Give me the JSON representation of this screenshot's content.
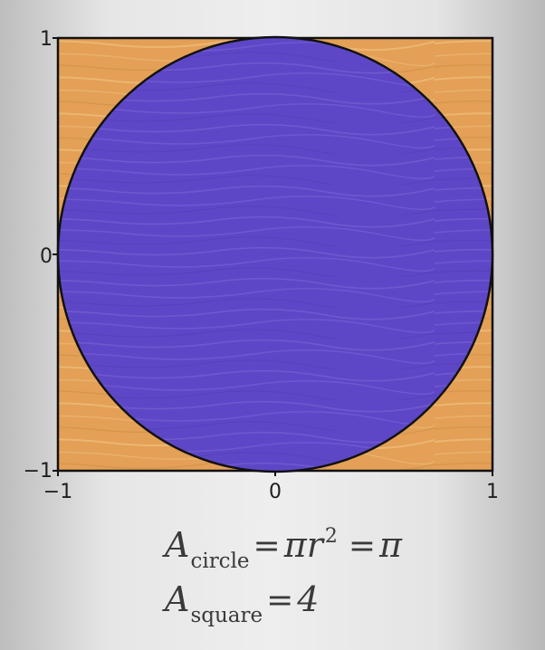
{
  "diagram": {
    "domain": {
      "xmin": -1,
      "xmax": 1,
      "ymin": -1,
      "ymax": 1
    },
    "circle": {
      "cx": 0,
      "cy": 0,
      "r": 1
    },
    "colors": {
      "square_fill": "#e3a056",
      "circle_fill": "#5e47c6",
      "outline": "#111111"
    },
    "ticks": {
      "y_top": "1",
      "y_mid": "0",
      "y_bottom": "−1",
      "x_left": "−1",
      "x_mid": "0",
      "x_right": "1"
    }
  },
  "equations": {
    "circle": {
      "lhs_letter": "A",
      "lhs_subscript": "circle",
      "eq_sign_1": "=",
      "pi": "π",
      "r": "r",
      "exponent": "2",
      "eq_sign_2": "=",
      "result": "π"
    },
    "square": {
      "lhs_letter": "A",
      "lhs_subscript": "square",
      "eq_sign": "=",
      "result": "4"
    }
  }
}
